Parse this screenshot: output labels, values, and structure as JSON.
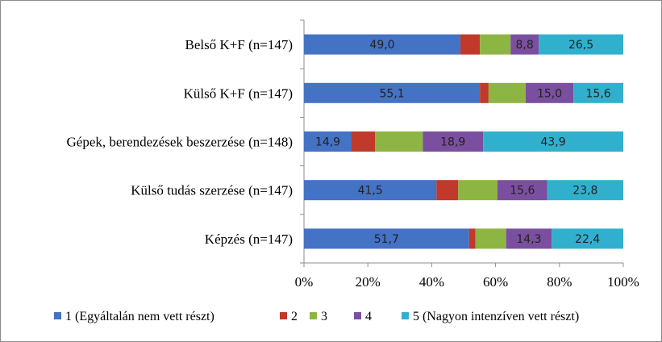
{
  "chart_data": {
    "type": "bar",
    "orientation": "horizontal",
    "stacked": "percent",
    "categories": [
      "Belső K+F (n=147)",
      "Külső K+F (n=147)",
      "Gépek, berendezések beszerzése (n=148)",
      "Külső tudás szerzése (n=147)",
      "Képzés (n=147)"
    ],
    "series": [
      {
        "name": "1 (Egyáltalán nem vett részt)",
        "color": "#4472C4",
        "values": [
          49.0,
          55.1,
          14.9,
          41.5,
          51.7
        ],
        "labels": [
          "49,0",
          "55,1",
          "14,9",
          "41,5",
          "51,7"
        ]
      },
      {
        "name": "2",
        "color": "#C0392B",
        "values": [
          6.1,
          2.7,
          7.4,
          6.8,
          2.0
        ],
        "labels": [
          "",
          "",
          "",
          "",
          ""
        ]
      },
      {
        "name": "3",
        "color": "#8DB543",
        "values": [
          9.6,
          11.6,
          14.9,
          12.3,
          9.6
        ],
        "labels": [
          "",
          "",
          "",
          "",
          ""
        ]
      },
      {
        "name": "4",
        "color": "#7B4FA0",
        "values": [
          8.8,
          15.0,
          18.9,
          15.6,
          14.3
        ],
        "labels": [
          "8,8",
          "15,0",
          "18,9",
          "15,6",
          "14,3"
        ]
      },
      {
        "name": "5 (Nagyon intenzíven vett részt)",
        "color": "#31B0CE",
        "values": [
          26.5,
          15.6,
          43.9,
          23.8,
          22.4
        ],
        "labels": [
          "26,5",
          "15,6",
          "43,9",
          "23,8",
          "22,4"
        ]
      }
    ],
    "xlim": [
      0,
      100
    ],
    "xticks": [
      "0%",
      "20%",
      "40%",
      "60%",
      "80%",
      "100%"
    ],
    "legend_position": "bottom",
    "grid": false
  }
}
